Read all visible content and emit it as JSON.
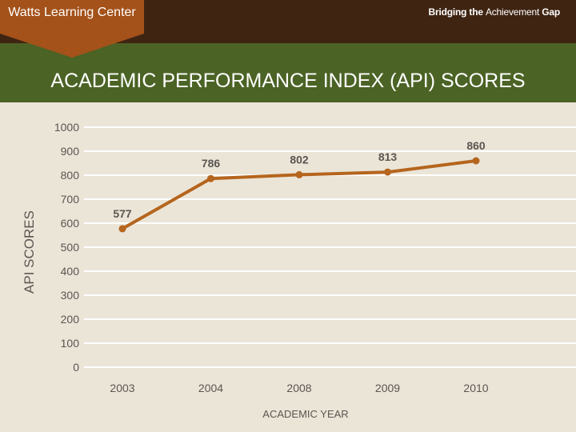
{
  "header": {
    "badge_label": "Watts Learning Center",
    "tagline_prefix": "Bridging the ",
    "tagline_emphasis": "Achievement",
    "tagline_suffix": " Gap"
  },
  "page_title": "ACADEMIC PERFORMANCE INDEX (API) SCORES",
  "colors": {
    "topbar": "#3f2412",
    "greenband": "#4b6325",
    "badge": "#a4521a",
    "series_line": "#b5651d",
    "gridline": "#ffffff"
  },
  "chart_data": {
    "type": "line",
    "title": "ACADEMIC PERFORMANCE INDEX (API) SCORES",
    "xlabel": "ACADEMIC YEAR",
    "ylabel": "API SCORES",
    "categories": [
      "2003",
      "2004",
      "2008",
      "2009",
      "2010"
    ],
    "series": [
      {
        "name": "API Scores",
        "values": [
          577,
          786,
          802,
          813,
          860
        ]
      }
    ],
    "data_labels": [
      "577",
      "786",
      "802",
      "813",
      "860"
    ],
    "ylim": [
      0,
      1000
    ],
    "yticks": [
      0,
      100,
      200,
      300,
      400,
      500,
      600,
      700,
      800,
      900,
      1000
    ],
    "grid": true,
    "legend": "none"
  }
}
